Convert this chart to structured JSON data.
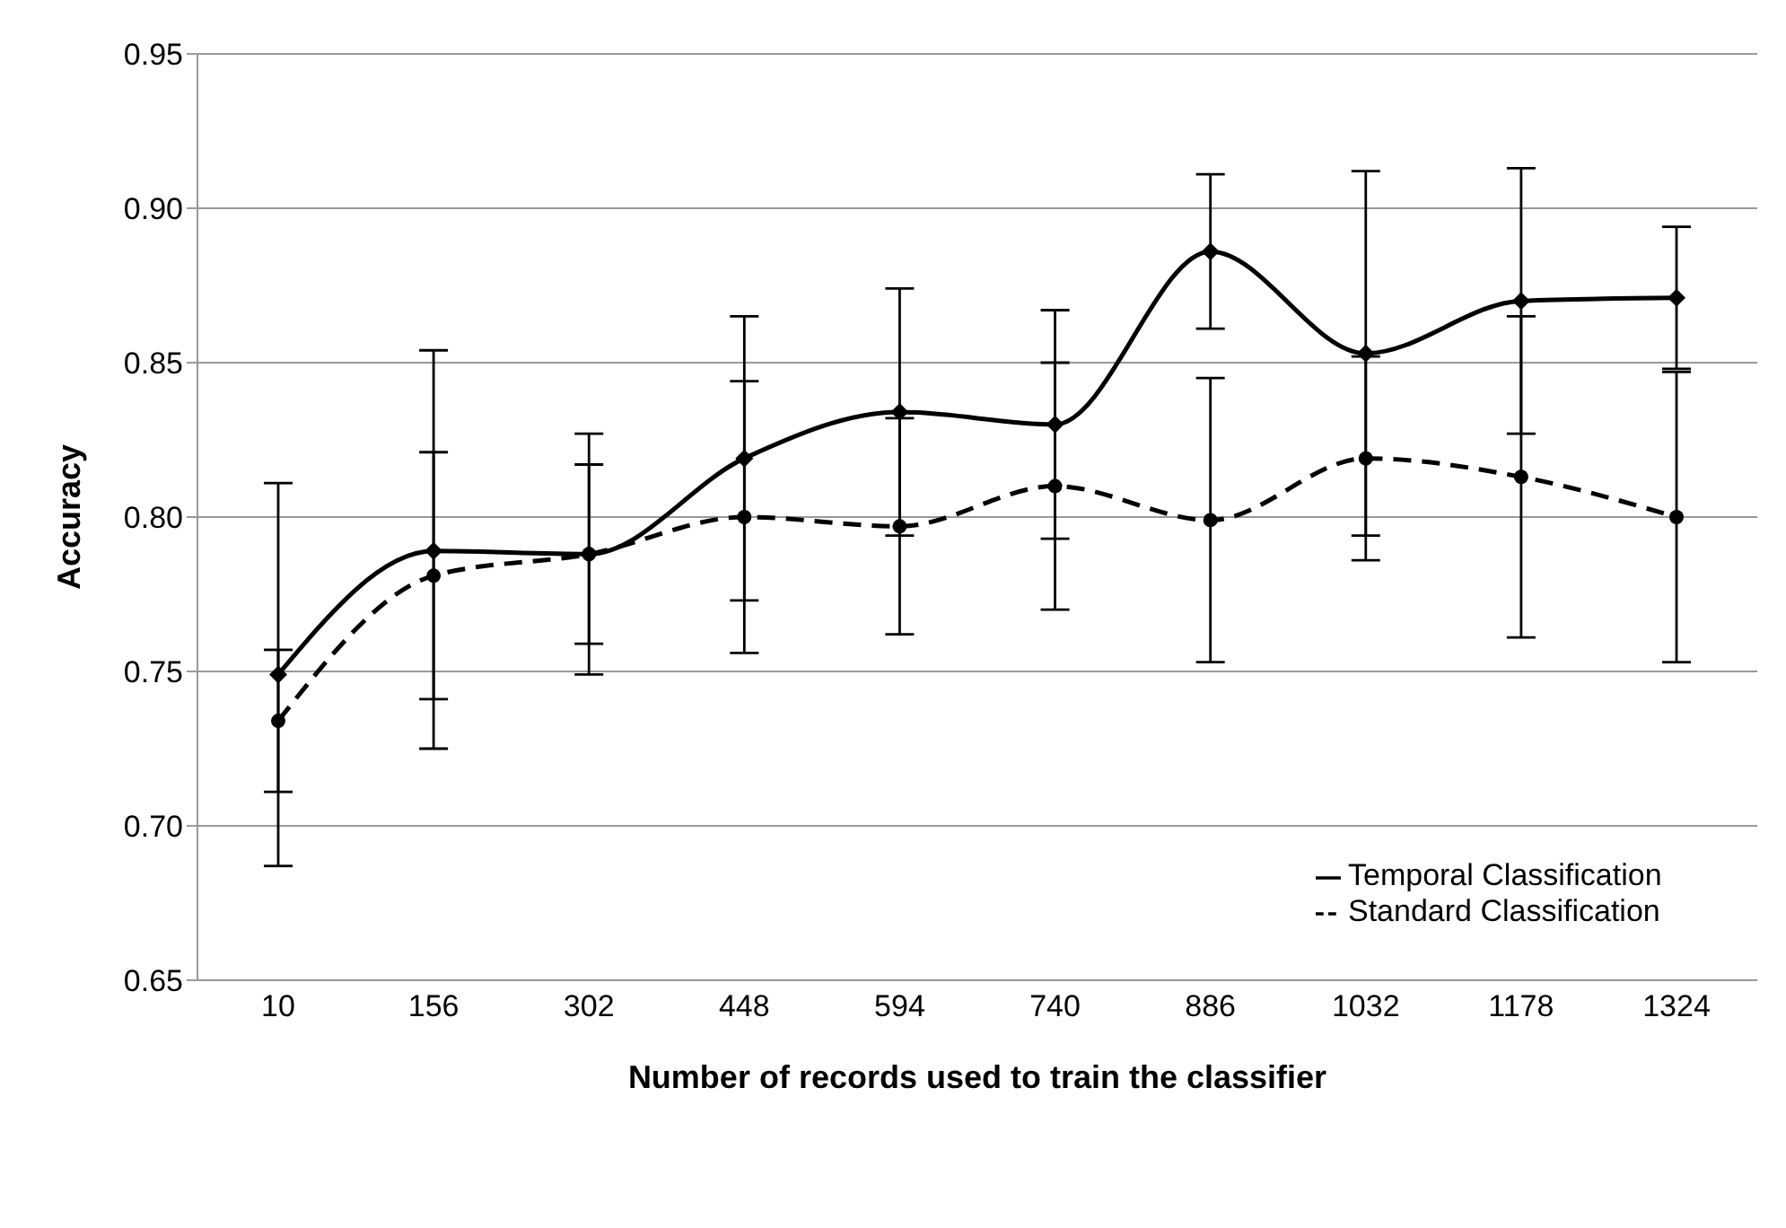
{
  "chart_data": {
    "type": "line",
    "xlabel": "Number of records used to train the classifier",
    "ylabel": "Accuracy",
    "categories": [
      "10",
      "156",
      "302",
      "448",
      "594",
      "740",
      "886",
      "1032",
      "1178",
      "1324"
    ],
    "series": [
      {
        "name": "Temporal Classification",
        "color": "#000000",
        "marker": "diamond",
        "line_style": "solid",
        "values": [
          0.749,
          0.789,
          0.788,
          0.819,
          0.834,
          0.83,
          0.886,
          0.853,
          0.87,
          0.871
        ],
        "errors": [
          0.062,
          [
            0.725,
            0.854
          ],
          0.039,
          0.046,
          0.04,
          0.037,
          0.025,
          0.059,
          0.043,
          0.023
        ]
      },
      {
        "name": "Standard Classification",
        "color": "#000000",
        "marker": "circle",
        "line_style": "dashed",
        "values": [
          0.734,
          0.781,
          0.788,
          0.8,
          0.797,
          0.81,
          0.799,
          0.819,
          0.813,
          0.8
        ],
        "errors": [
          0.023,
          0.04,
          0.029,
          0.044,
          0.035,
          0.04,
          0.046,
          0.033,
          0.052,
          0.047
        ]
      }
    ],
    "ylim": [
      0.65,
      0.95
    ],
    "yticks": [
      0.65,
      {
        "value": 0.7,
        "label": "0.70"
      },
      0.75,
      {
        "value": 0.8,
        "label": "0.80"
      },
      0.85,
      {
        "value": 0.9,
        "label": "0.90"
      },
      0.95
    ],
    "grid": "y",
    "legend": "bottom right"
  }
}
